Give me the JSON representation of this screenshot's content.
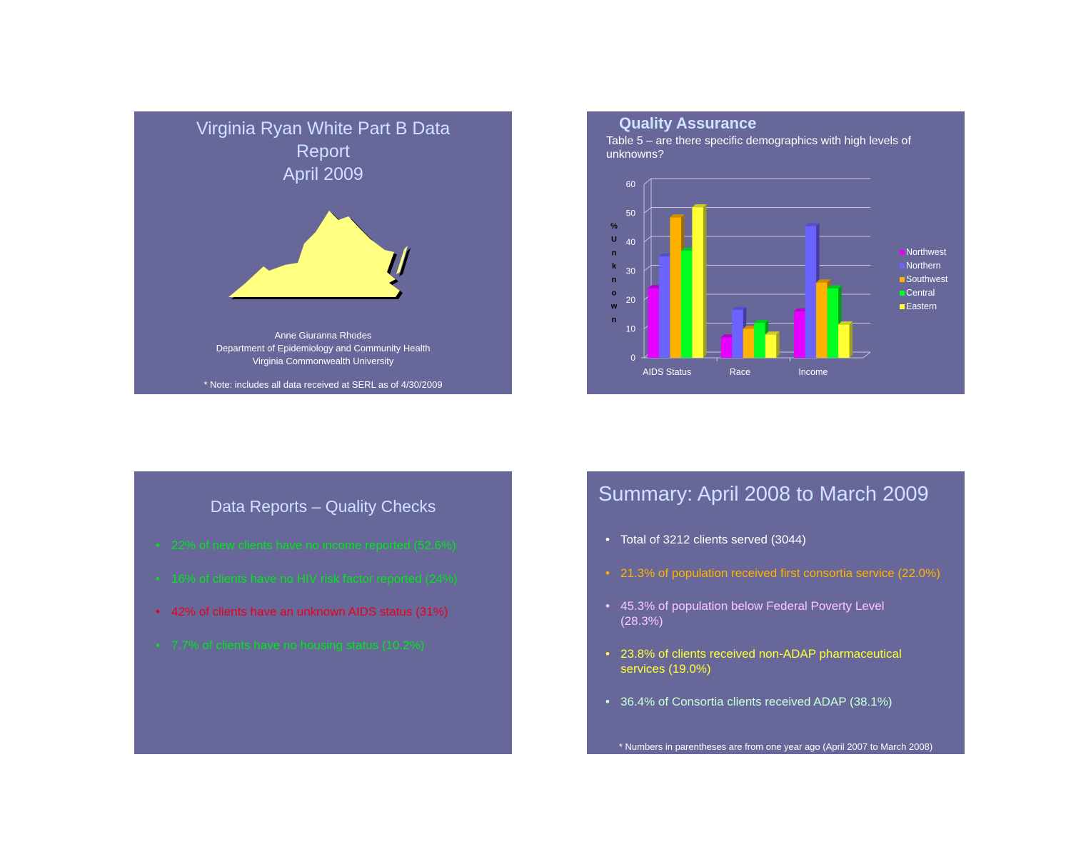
{
  "slide1": {
    "title_lines": [
      "Virginia Ryan White Part B Data",
      "Report",
      "April 2009"
    ],
    "author_lines": [
      "Anne Giuranna Rhodes",
      "Department of Epidemiology and Community Health",
      "Virginia Commonwealth University"
    ],
    "note": "* Note: includes all data received at SERL as of 4/30/2009",
    "map_color": "#ffff80"
  },
  "slide2": {
    "heading": "Quality Assurance",
    "subheading": "Table 5 – are there specific demographics with high levels of unknowns?"
  },
  "chart_data": {
    "type": "bar",
    "categories": [
      "AIDS Status",
      "Race",
      "Income"
    ],
    "series": [
      {
        "name": "Northwest",
        "color": "#e600ff",
        "values": [
          24,
          7,
          16
        ]
      },
      {
        "name": "Northern",
        "color": "#6b63ff",
        "values": [
          35,
          16.5,
          45.5
        ]
      },
      {
        "name": "Southwest",
        "color": "#ffb300",
        "values": [
          48.5,
          10,
          26
        ]
      },
      {
        "name": "Central",
        "color": "#00ff22",
        "values": [
          37,
          12,
          24
        ]
      },
      {
        "name": "Eastern",
        "color": "#ffff33",
        "values": [
          52,
          8,
          11.5
        ]
      }
    ],
    "ylabel": "% Unknown",
    "ylim": [
      0,
      60
    ],
    "yticks": [
      0,
      10,
      20,
      30,
      40,
      50,
      60
    ],
    "grid": true,
    "legend_position": "right"
  },
  "slide3": {
    "title": "Data Reports – Quality Checks",
    "bullets": [
      {
        "text": "22% of new clients have no income reported (52.6%)",
        "color": "#00e61a"
      },
      {
        "text": "16% of clients have no HIV risk factor reported (24%)",
        "color": "#00e61a"
      },
      {
        "text": "42% of clients have an unknown AIDS status (31%)",
        "color": "#e8001a"
      },
      {
        "text": "7.7% of clients have no housing status (10.2%)",
        "color": "#00e61a"
      }
    ]
  },
  "slide4": {
    "title": "Summary: April 2008 to March 2009",
    "bullets": [
      {
        "text": "Total of 3212 clients served (3044)",
        "color": "#ffffff"
      },
      {
        "text": "21.3% of population received first consortia service (22.0%)",
        "color": "#ffb300"
      },
      {
        "text": "45.3% of population below Federal Poverty Level (28.3%)",
        "color": "#ffc6ff"
      },
      {
        "text": "23.8% of clients received non-ADAP pharmaceutical services (19.0%)",
        "color": "#ffff33"
      },
      {
        "text": "36.4% of Consortia clients received ADAP (38.1%)",
        "color": "#c8ffd8"
      }
    ],
    "note": "* Numbers in parentheses are from one year ago (April 2007 to March 2008)"
  }
}
